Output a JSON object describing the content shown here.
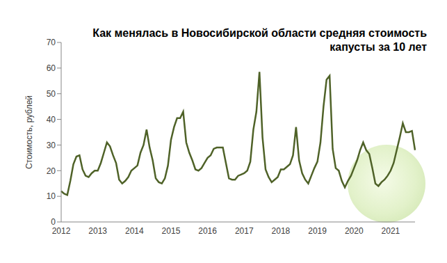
{
  "chart_data": {
    "type": "line",
    "title": "Как менялась в Новосибирской области средняя стоимость капусты за 10 лет",
    "y_label": "Стоимость, рублей",
    "categories": [
      "2012",
      null,
      null,
      null,
      null,
      null,
      null,
      null,
      null,
      null,
      null,
      null,
      "2013",
      null,
      null,
      null,
      null,
      null,
      null,
      null,
      null,
      null,
      null,
      null,
      "2014",
      null,
      null,
      null,
      null,
      null,
      null,
      null,
      null,
      null,
      null,
      null,
      "2015",
      null,
      null,
      null,
      null,
      null,
      null,
      null,
      null,
      null,
      null,
      null,
      "2016",
      null,
      null,
      null,
      null,
      null,
      null,
      null,
      null,
      null,
      null,
      null,
      "2017",
      null,
      null,
      null,
      null,
      null,
      null,
      null,
      null,
      null,
      null,
      null,
      "2018",
      null,
      null,
      null,
      null,
      null,
      null,
      null,
      null,
      null,
      null,
      null,
      "2019",
      null,
      null,
      null,
      null,
      null,
      null,
      null,
      null,
      null,
      null,
      null,
      "2020",
      null,
      null,
      null,
      null,
      null,
      null,
      null,
      null,
      null,
      null,
      null,
      "2021",
      null,
      null,
      null,
      null,
      null,
      null,
      null,
      null
    ],
    "values": [
      12,
      11,
      10.5,
      16,
      22.5,
      25.5,
      26,
      20.5,
      18,
      17.5,
      19,
      20,
      20,
      23,
      27,
      31,
      29.5,
      26,
      23,
      16.5,
      15,
      16,
      17.5,
      20,
      21,
      22,
      27,
      30,
      36,
      29,
      24,
      17,
      15.5,
      15,
      17,
      22,
      32,
      37,
      40.5,
      40.5,
      43,
      31,
      27,
      24,
      20.5,
      20,
      21,
      23,
      25,
      26,
      28.5,
      29,
      29,
      29,
      23,
      17,
      16.5,
      16.5,
      18,
      18.5,
      19,
      20,
      23.5,
      36,
      43,
      58.5,
      33,
      20.5,
      17.5,
      15.5,
      16.5,
      17.5,
      20.5,
      20.5,
      21.5,
      22.5,
      26,
      37,
      24,
      19,
      16.5,
      15,
      18,
      21,
      23.5,
      31,
      45,
      55.5,
      57,
      28.5,
      21,
      20,
      16,
      13.5,
      16,
      18,
      21,
      24,
      28,
      31,
      28,
      26.5,
      21,
      15,
      14,
      15.5,
      16.5,
      18,
      20,
      23,
      28,
      33,
      38.5,
      35,
      35,
      35.5,
      28
    ],
    "color": "#4f6228",
    "ylim": [
      0,
      70
    ],
    "yticks": [
      0,
      10,
      20,
      30,
      40,
      50,
      60,
      70
    ],
    "grid": false
  }
}
